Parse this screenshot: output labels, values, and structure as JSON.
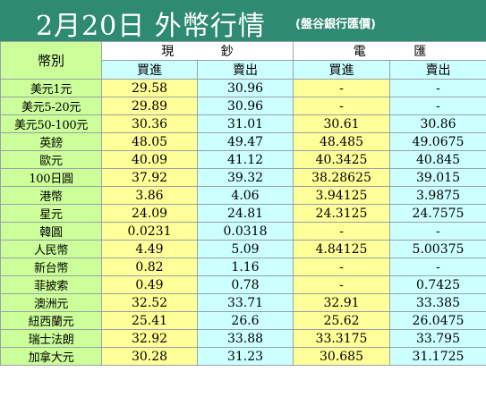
{
  "title": {
    "main": "2月20日 外幣行情",
    "sub": "(盤谷銀行匯價)"
  },
  "header": {
    "currency": "幣別",
    "cash": [
      "現",
      "鈔"
    ],
    "telegraphic": [
      "電",
      "匯"
    ],
    "buy": "買進",
    "sell": "賣出"
  },
  "rows": [
    {
      "name": "美元1元",
      "cash_buy": "29.58",
      "cash_sell": "30.96",
      "tt_buy": "-",
      "tt_sell": "-"
    },
    {
      "name": "美元5-20元",
      "cash_buy": "29.89",
      "cash_sell": "30.96",
      "tt_buy": "-",
      "tt_sell": "-"
    },
    {
      "name": "美元50-100元",
      "cash_buy": "30.36",
      "cash_sell": "31.01",
      "tt_buy": "30.61",
      "tt_sell": "30.86"
    },
    {
      "name": "英鎊",
      "cash_buy": "48.05",
      "cash_sell": "49.47",
      "tt_buy": "48.485",
      "tt_sell": "49.0675"
    },
    {
      "name": "歐元",
      "cash_buy": "40.09",
      "cash_sell": "41.12",
      "tt_buy": "40.3425",
      "tt_sell": "40.845"
    },
    {
      "name": "100日圓",
      "cash_buy": "37.92",
      "cash_sell": "39.32",
      "tt_buy": "38.28625",
      "tt_sell": "39.015"
    },
    {
      "name": "港幣",
      "cash_buy": "3.86",
      "cash_sell": "4.06",
      "tt_buy": "3.94125",
      "tt_sell": "3.9875"
    },
    {
      "name": "星元",
      "cash_buy": "24.09",
      "cash_sell": "24.81",
      "tt_buy": "24.3125",
      "tt_sell": "24.7575"
    },
    {
      "name": "韓圓",
      "cash_buy": "0.0231",
      "cash_sell": "0.0318",
      "tt_buy": "-",
      "tt_sell": "-"
    },
    {
      "name": "人民幣",
      "cash_buy": "4.49",
      "cash_sell": "5.09",
      "tt_buy": "4.84125",
      "tt_sell": "5.00375"
    },
    {
      "name": "新台幣",
      "cash_buy": "0.82",
      "cash_sell": "1.16",
      "tt_buy": "-",
      "tt_sell": "-"
    },
    {
      "name": "菲披索",
      "cash_buy": "0.49",
      "cash_sell": "0.78",
      "tt_buy": "-",
      "tt_sell": "0.7425"
    },
    {
      "name": "澳洲元",
      "cash_buy": "32.52",
      "cash_sell": "33.71",
      "tt_buy": "32.91",
      "tt_sell": "33.385"
    },
    {
      "name": "紐西蘭元",
      "cash_buy": "25.41",
      "cash_sell": "26.6",
      "tt_buy": "25.62",
      "tt_sell": "26.0475"
    },
    {
      "name": "瑞士法朗",
      "cash_buy": "32.92",
      "cash_sell": "33.88",
      "tt_buy": "33.3175",
      "tt_sell": "33.795"
    },
    {
      "name": "加拿大元",
      "cash_buy": "30.28",
      "cash_sell": "31.23",
      "tt_buy": "30.685",
      "tt_sell": "31.1725"
    }
  ],
  "colors": {
    "title_bar": "#2e8a72",
    "currency_column": "#ccff99",
    "buy_column": "#ffff99",
    "sell_column": "#ccffff"
  }
}
